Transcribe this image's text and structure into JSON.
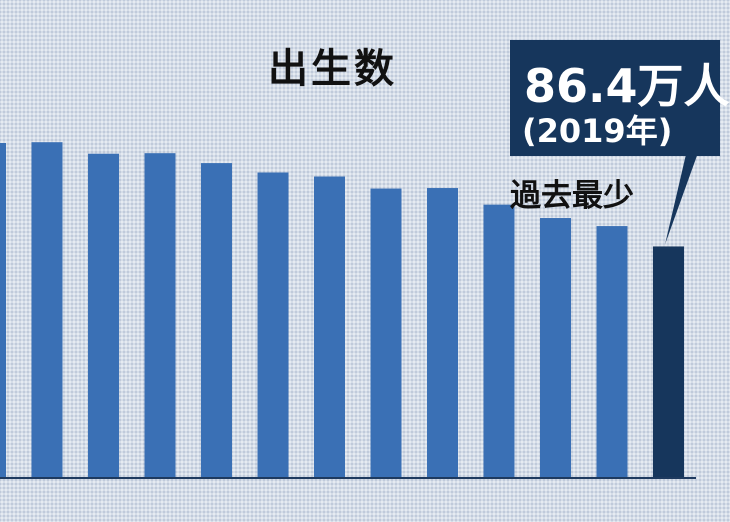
{
  "colors": {
    "bar": "#3a70b5",
    "highlight_bar": "#16365c",
    "callout_bg": "#16365c",
    "baseline": "#1e3a5f"
  },
  "callout": {
    "value": "86.4万人",
    "year": "(2019年)",
    "note": "過去最少"
  },
  "chart_data": {
    "type": "bar",
    "title": "出生数",
    "xlabel": "",
    "ylabel": "",
    "values": [
      125,
      125.3,
      121,
      121.2,
      117.5,
      114,
      112.5,
      108,
      108.2,
      102,
      97,
      94,
      86.4
    ],
    "highlight_index": 12,
    "ylim": [
      0,
      135
    ],
    "grid": false,
    "legend": "none"
  }
}
